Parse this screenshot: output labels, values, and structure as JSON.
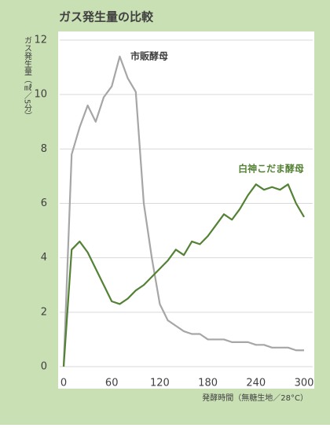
{
  "chart_data": {
    "type": "line",
    "title": "ガス発生量の比較",
    "y_label": "ガス発生量（㎖／5分）",
    "x_label": "発酵時間（無糖生地／28°C）",
    "x": [
      0,
      10,
      20,
      30,
      40,
      50,
      60,
      70,
      80,
      90,
      100,
      110,
      120,
      130,
      140,
      150,
      160,
      170,
      180,
      190,
      200,
      210,
      220,
      230,
      240,
      250,
      260,
      270,
      280,
      290,
      300
    ],
    "series": [
      {
        "name": "市販酵母",
        "color": "#a6a6a6",
        "values": [
          0,
          7.8,
          8.8,
          9.6,
          9.0,
          9.9,
          10.3,
          11.4,
          10.6,
          10.1,
          6.0,
          4.0,
          2.3,
          1.7,
          1.5,
          1.3,
          1.2,
          1.2,
          1.0,
          1.0,
          1.0,
          0.9,
          0.9,
          0.9,
          0.8,
          0.8,
          0.7,
          0.7,
          0.7,
          0.6,
          0.6
        ]
      },
      {
        "name": "白神こだま酵母",
        "color": "#548235",
        "values": [
          0,
          4.3,
          4.6,
          4.2,
          3.6,
          3.0,
          2.4,
          2.3,
          2.5,
          2.8,
          3.0,
          3.3,
          3.6,
          3.9,
          4.3,
          4.1,
          4.6,
          4.5,
          4.8,
          5.2,
          5.6,
          5.4,
          5.8,
          6.3,
          6.7,
          6.5,
          6.6,
          6.5,
          6.7,
          6.0,
          5.5
        ]
      }
    ],
    "xlim": [
      0,
      300
    ],
    "xticks": [
      0,
      60,
      120,
      180,
      240,
      300
    ],
    "ylim": [
      0,
      12
    ],
    "yticks": [
      0,
      2,
      4,
      6,
      8,
      10,
      12
    ],
    "grid": true
  }
}
